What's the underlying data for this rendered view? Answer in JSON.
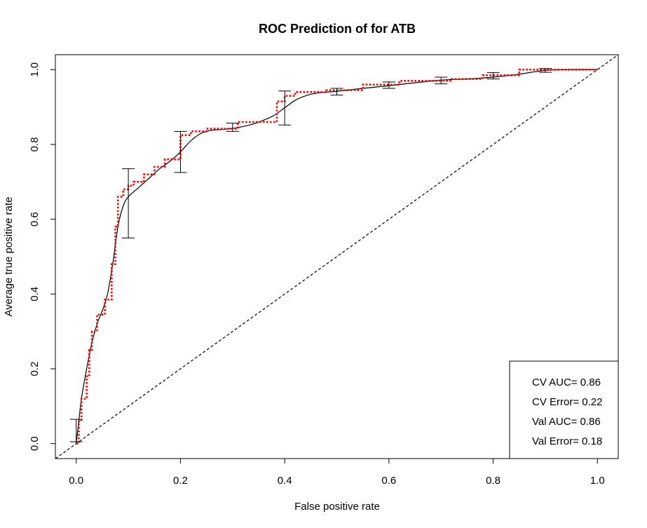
{
  "chart_data": {
    "type": "line",
    "title": "ROC Prediction of for ATB",
    "xlabel": "False positive rate",
    "ylabel": "Average true positive rate",
    "xlim": [
      -0.04,
      1.04
    ],
    "ylim": [
      -0.04,
      1.04
    ],
    "x_ticks": [
      "0.0",
      "0.2",
      "0.4",
      "0.6",
      "0.8",
      "1.0"
    ],
    "y_ticks": [
      "0.0",
      "0.2",
      "0.4",
      "0.6",
      "0.8",
      "1.0"
    ],
    "grid": false,
    "legend_position": "bottom-right",
    "legend": {
      "lines": [
        "CV AUC= 0.86",
        "CV Error= 0.22",
        "Val AUC= 0.86",
        "Val Error= 0.18"
      ]
    },
    "reference_line": {
      "from": [
        0,
        0
      ],
      "to": [
        1,
        1
      ],
      "style": "dashed",
      "color": "#000000"
    },
    "series": [
      {
        "style": "solid",
        "color": "#000000",
        "x": [
          0,
          0.005,
          0.01,
          0.02,
          0.03,
          0.04,
          0.05,
          0.06,
          0.07,
          0.08,
          0.09,
          0.1,
          0.12,
          0.14,
          0.16,
          0.18,
          0.2,
          0.22,
          0.24,
          0.26,
          0.28,
          0.3,
          0.32,
          0.34,
          0.36,
          0.38,
          0.4,
          0.42,
          0.44,
          0.46,
          0.48,
          0.5,
          0.55,
          0.6,
          0.65,
          0.7,
          0.75,
          0.8,
          0.85,
          0.9,
          0.95,
          1.0
        ],
        "y": [
          0.0,
          0.06,
          0.12,
          0.2,
          0.27,
          0.32,
          0.355,
          0.4,
          0.48,
          0.58,
          0.635,
          0.66,
          0.685,
          0.71,
          0.735,
          0.755,
          0.78,
          0.81,
          0.83,
          0.838,
          0.84,
          0.843,
          0.848,
          0.855,
          0.865,
          0.878,
          0.898,
          0.918,
          0.93,
          0.937,
          0.94,
          0.942,
          0.95,
          0.957,
          0.965,
          0.972,
          0.975,
          0.98,
          0.988,
          0.998,
          1.0,
          1.0
        ]
      },
      {
        "style": "dotted",
        "color": "#ff0000",
        "x": [
          0,
          0.005,
          0.005,
          0.01,
          0.01,
          0.02,
          0.02,
          0.025,
          0.025,
          0.03,
          0.03,
          0.04,
          0.04,
          0.055,
          0.055,
          0.068,
          0.068,
          0.075,
          0.075,
          0.08,
          0.08,
          0.09,
          0.09,
          0.1,
          0.1,
          0.11,
          0.11,
          0.13,
          0.13,
          0.15,
          0.15,
          0.17,
          0.17,
          0.2,
          0.2,
          0.22,
          0.22,
          0.25,
          0.25,
          0.31,
          0.31,
          0.385,
          0.385,
          0.4,
          0.4,
          0.42,
          0.42,
          0.48,
          0.48,
          0.55,
          0.55,
          0.62,
          0.62,
          0.72,
          0.72,
          0.78,
          0.78,
          0.85,
          0.85,
          0.9,
          0.9,
          1.0
        ],
        "y": [
          0.0,
          0.0,
          0.06,
          0.06,
          0.12,
          0.12,
          0.18,
          0.18,
          0.25,
          0.25,
          0.3,
          0.3,
          0.345,
          0.345,
          0.385,
          0.385,
          0.48,
          0.48,
          0.58,
          0.58,
          0.66,
          0.66,
          0.68,
          0.68,
          0.69,
          0.69,
          0.7,
          0.7,
          0.72,
          0.72,
          0.74,
          0.74,
          0.76,
          0.76,
          0.825,
          0.825,
          0.835,
          0.835,
          0.842,
          0.842,
          0.86,
          0.86,
          0.915,
          0.915,
          0.93,
          0.93,
          0.94,
          0.94,
          0.945,
          0.945,
          0.96,
          0.96,
          0.97,
          0.97,
          0.975,
          0.975,
          0.985,
          0.985,
          1.0,
          1.0,
          1.0,
          1.0
        ]
      }
    ],
    "error_bars": [
      {
        "x": 0.0,
        "low": 0.005,
        "high": 0.065
      },
      {
        "x": 0.1,
        "low": 0.55,
        "high": 0.735
      },
      {
        "x": 0.2,
        "low": 0.725,
        "high": 0.835
      },
      {
        "x": 0.3,
        "low": 0.835,
        "high": 0.857
      },
      {
        "x": 0.4,
        "low": 0.852,
        "high": 0.943
      },
      {
        "x": 0.5,
        "low": 0.932,
        "high": 0.95
      },
      {
        "x": 0.6,
        "low": 0.95,
        "high": 0.967
      },
      {
        "x": 0.7,
        "low": 0.962,
        "high": 0.98
      },
      {
        "x": 0.8,
        "low": 0.975,
        "high": 0.992
      },
      {
        "x": 0.9,
        "low": 0.993,
        "high": 1.003
      }
    ]
  }
}
